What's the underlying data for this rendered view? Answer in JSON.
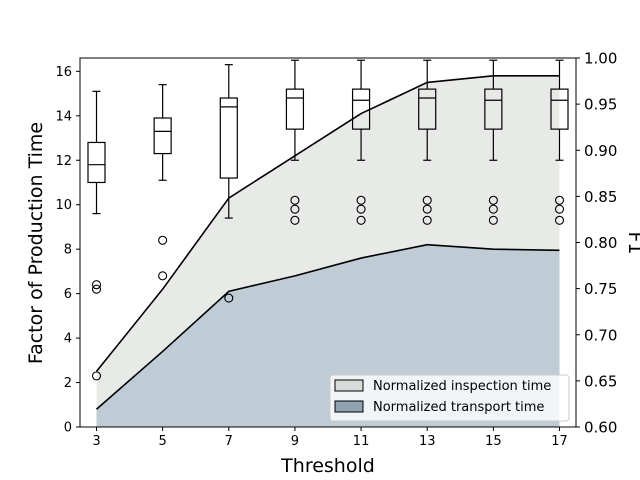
{
  "chart_data": {
    "type": "area",
    "xlabel": "Threshold",
    "ylabel": "Factor of Production Time",
    "y2label": "F1",
    "x": [
      3,
      5,
      7,
      9,
      11,
      13,
      15,
      17
    ],
    "xticks": [
      "3",
      "5",
      "7",
      "9",
      "11",
      "13",
      "15",
      "17"
    ],
    "ylim": [
      0,
      16.6
    ],
    "yticks": [
      "0",
      "2",
      "4",
      "6",
      "8",
      "10",
      "12",
      "14",
      "16"
    ],
    "y2lim": [
      0.6,
      1.0
    ],
    "y2ticks": [
      "0.60",
      "0.65",
      "0.70",
      "0.75",
      "0.80",
      "0.85",
      "0.90",
      "0.95",
      "1.00"
    ],
    "grid": false,
    "legend_placement": "lower-right",
    "series": [
      {
        "name": "Normalized inspection time",
        "kind": "area",
        "color": "#e8eae7",
        "values": [
          2.5,
          6.2,
          10.3,
          12.2,
          14.1,
          15.5,
          15.8,
          15.8
        ]
      },
      {
        "name": "Normalized transport time",
        "kind": "area",
        "color": "#bfccd5",
        "values": [
          0.8,
          3.4,
          6.1,
          6.8,
          7.6,
          8.2,
          8.0,
          7.95
        ]
      }
    ],
    "legend_colors": [
      "#d7dcd8",
      "#8fa2b1"
    ],
    "boxplots": [
      {
        "x": 3,
        "whisker_low": 9.6,
        "q1": 11.0,
        "median": 11.8,
        "q3": 12.8,
        "whisker_high": 15.1,
        "outliers": [
          6.4,
          6.2,
          2.3
        ]
      },
      {
        "x": 5,
        "whisker_low": 11.1,
        "q1": 12.3,
        "median": 13.3,
        "q3": 13.9,
        "whisker_high": 15.4,
        "outliers": [
          8.4,
          6.8
        ]
      },
      {
        "x": 7,
        "whisker_low": 9.4,
        "q1": 11.2,
        "median": 14.4,
        "q3": 14.8,
        "whisker_high": 16.3,
        "outliers": [
          5.8
        ]
      },
      {
        "x": 9,
        "whisker_low": 12.0,
        "q1": 13.4,
        "median": 14.8,
        "q3": 15.2,
        "whisker_high": 16.5,
        "outliers": [
          10.2,
          9.8,
          9.3
        ]
      },
      {
        "x": 11,
        "whisker_low": 12.0,
        "q1": 13.4,
        "median": 14.7,
        "q3": 15.2,
        "whisker_high": 16.5,
        "outliers": [
          10.2,
          9.8,
          9.3
        ]
      },
      {
        "x": 13,
        "whisker_low": 12.0,
        "q1": 13.4,
        "median": 14.8,
        "q3": 15.2,
        "whisker_high": 16.5,
        "outliers": [
          10.2,
          9.8,
          9.3
        ]
      },
      {
        "x": 15,
        "whisker_low": 12.0,
        "q1": 13.4,
        "median": 14.7,
        "q3": 15.2,
        "whisker_high": 16.5,
        "outliers": [
          10.2,
          9.8,
          9.3
        ]
      },
      {
        "x": 17,
        "whisker_low": 12.0,
        "q1": 13.4,
        "median": 14.7,
        "q3": 15.2,
        "whisker_high": 16.5,
        "outliers": [
          10.2,
          9.8,
          9.3
        ]
      }
    ]
  }
}
